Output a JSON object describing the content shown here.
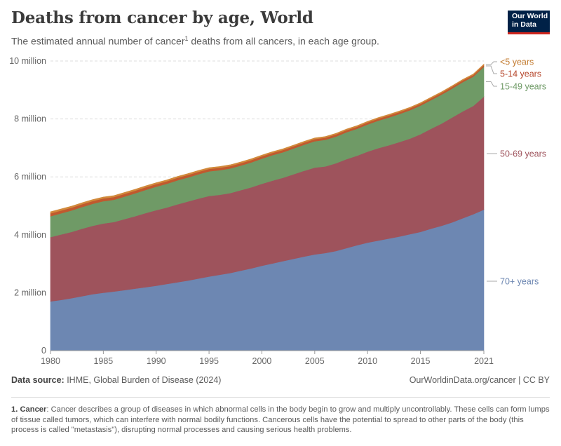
{
  "header": {
    "title": "Deaths from cancer by age, World",
    "subtitle_before": "The estimated annual number of cancer",
    "subtitle_sup": "1",
    "subtitle_after": " deaths from all cancers, in each age group.",
    "logo_line1": "Our World",
    "logo_line2": "in Data"
  },
  "footer": {
    "source_label": "Data source:",
    "source_text": " IHME, Global Burden of Disease (2024)",
    "license": "OurWorldinData.org/cancer | CC BY",
    "footnote_label": "1. Cancer",
    "footnote_text": ": Cancer describes a group of diseases in which abnormal cells in the body begin to grow and multiply uncontrollably. These cells can form lumps of tissue called tumors, which can interfere with normal bodily functions. Cancerous cells have the potential to spread to other parts of the body (this process is called \"metastasis\"), disrupting normal processes and causing serious health problems."
  },
  "colors": {
    "70plus": "#6d87b2",
    "50to69": "#9e535c",
    "15to49": "#6f9a66",
    "5to14": "#c0592e",
    "under5": "#d18a3c"
  },
  "chart_data": {
    "type": "area",
    "stacked": true,
    "x": [
      1980,
      1981,
      1982,
      1983,
      1984,
      1985,
      1986,
      1987,
      1988,
      1989,
      1990,
      1991,
      1992,
      1993,
      1994,
      1995,
      1996,
      1997,
      1998,
      1999,
      2000,
      2001,
      2002,
      2003,
      2004,
      2005,
      2006,
      2007,
      2008,
      2009,
      2010,
      2011,
      2012,
      2013,
      2014,
      2015,
      2016,
      2017,
      2018,
      2019,
      2020,
      2021
    ],
    "ylim": [
      0,
      10000000
    ],
    "yticks": [
      0,
      2000000,
      4000000,
      6000000,
      8000000,
      10000000
    ],
    "ytick_labels": [
      "0",
      "2 million",
      "4 million",
      "6 million",
      "8 million",
      "10 million"
    ],
    "xticks": [
      1980,
      1985,
      1990,
      1995,
      2000,
      2005,
      2010,
      2015,
      2021
    ],
    "xtick_labels": [
      "1980",
      "1985",
      "1990",
      "1995",
      "2000",
      "2005",
      "2010",
      "2015",
      "2021"
    ],
    "grid": true,
    "legend": "right",
    "series": [
      {
        "name": "70+ years",
        "color_key": "70plus",
        "values": [
          1700000,
          1750000,
          1810000,
          1880000,
          1950000,
          2000000,
          2040000,
          2090000,
          2140000,
          2190000,
          2240000,
          2300000,
          2360000,
          2420000,
          2490000,
          2560000,
          2620000,
          2680000,
          2760000,
          2840000,
          2930000,
          3010000,
          3090000,
          3170000,
          3250000,
          3320000,
          3370000,
          3440000,
          3540000,
          3640000,
          3730000,
          3800000,
          3870000,
          3940000,
          4020000,
          4100000,
          4210000,
          4310000,
          4430000,
          4570000,
          4710000,
          4870000
        ]
      },
      {
        "name": "50-69 years",
        "color_key": "50to69",
        "values": [
          2220000,
          2260000,
          2290000,
          2330000,
          2360000,
          2390000,
          2400000,
          2450000,
          2500000,
          2560000,
          2610000,
          2640000,
          2690000,
          2730000,
          2760000,
          2780000,
          2760000,
          2760000,
          2780000,
          2800000,
          2830000,
          2860000,
          2880000,
          2920000,
          2960000,
          3000000,
          2990000,
          3030000,
          3070000,
          3090000,
          3140000,
          3190000,
          3220000,
          3260000,
          3300000,
          3370000,
          3450000,
          3530000,
          3620000,
          3690000,
          3740000,
          3900000
        ]
      },
      {
        "name": "15-49 years",
        "color_key": "15to49",
        "values": [
          720000,
          730000,
          740000,
          750000,
          760000,
          770000,
          770000,
          780000,
          790000,
          800000,
          810000,
          820000,
          830000,
          830000,
          840000,
          850000,
          850000,
          850000,
          850000,
          860000,
          870000,
          880000,
          880000,
          890000,
          900000,
          910000,
          920000,
          920000,
          930000,
          930000,
          940000,
          950000,
          960000,
          970000,
          980000,
          990000,
          990000,
          1000000,
          1000000,
          1010000,
          1010000,
          1030000
        ]
      },
      {
        "name": "5-14 years",
        "color_key": "5to14",
        "values": [
          100000,
          99000,
          98000,
          97000,
          96000,
          95000,
          94000,
          93000,
          92000,
          91000,
          90000,
          89000,
          88000,
          87000,
          86000,
          85000,
          84000,
          83000,
          82000,
          81000,
          80000,
          79000,
          78000,
          77000,
          76000,
          75000,
          74000,
          73000,
          72000,
          71000,
          70000,
          69000,
          68000,
          67000,
          66000,
          65000,
          64000,
          63000,
          62000,
          61000,
          60000,
          60000
        ]
      },
      {
        "name": "<5 years",
        "color_key": "under5",
        "values": [
          55000,
          54000,
          53000,
          52000,
          51000,
          50000,
          49500,
          49000,
          48500,
          48000,
          47500,
          47000,
          46500,
          46000,
          45500,
          45000,
          44500,
          44000,
          43500,
          43000,
          42500,
          42000,
          41500,
          41000,
          40500,
          40000,
          39500,
          39000,
          38500,
          38000,
          37500,
          37000,
          36500,
          36000,
          35500,
          35000,
          34500,
          34000,
          33500,
          33000,
          32500,
          32000
        ]
      }
    ]
  }
}
